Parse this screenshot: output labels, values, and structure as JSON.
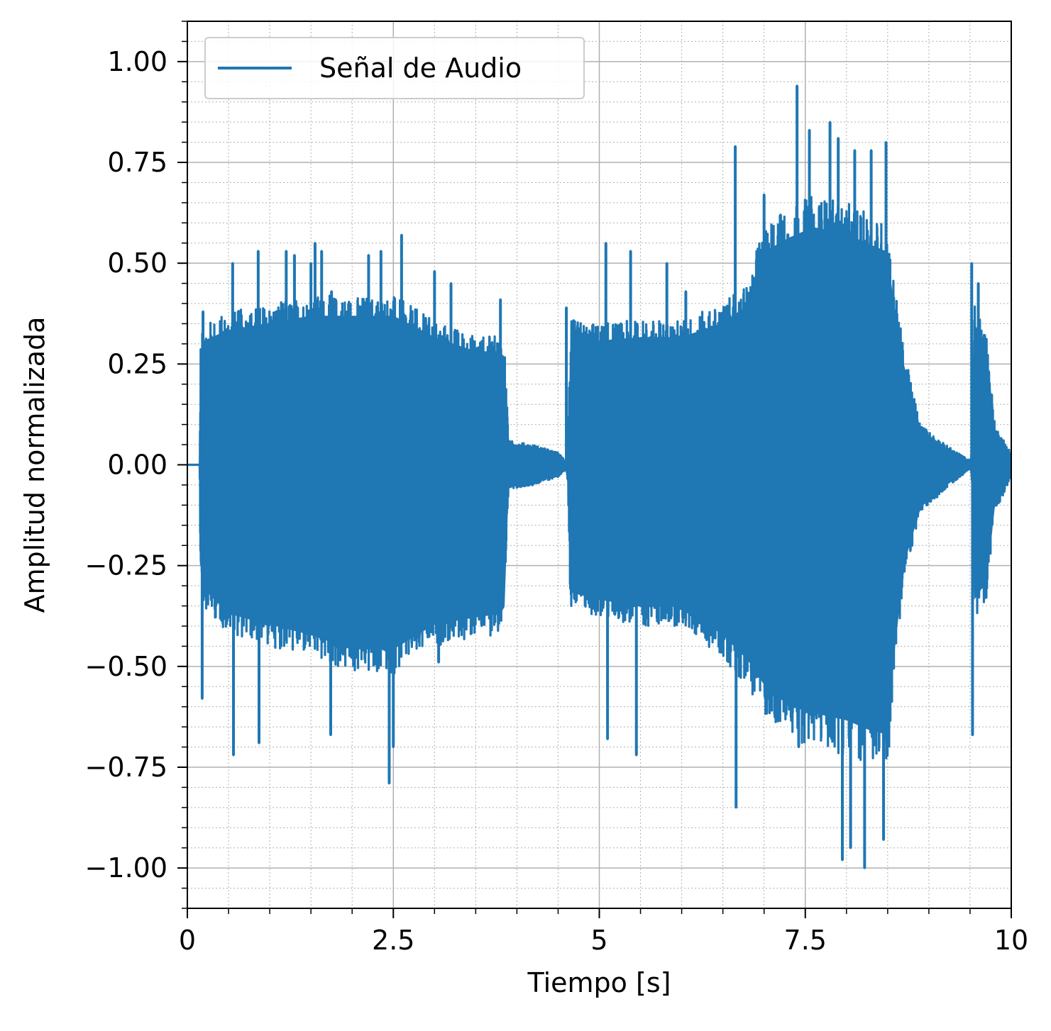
{
  "chart_data": {
    "type": "line",
    "title": "",
    "xlabel": "Tiempo [s]",
    "ylabel": "Amplitud normalizada",
    "xlim": [
      0,
      10
    ],
    "ylim": [
      -1.1,
      1.1
    ],
    "x_ticks": [
      0,
      2.5,
      5,
      7.5,
      10
    ],
    "x_tick_labels": [
      "0",
      "2.5",
      "5",
      "7.5",
      "10"
    ],
    "y_ticks": [
      1.0,
      0.75,
      0.5,
      0.25,
      0.0,
      -0.25,
      -0.5,
      -0.75,
      -1.0
    ],
    "y_tick_labels": [
      "1.00",
      "0.75",
      "0.50",
      "0.25",
      "0.00",
      "−0.25",
      "−0.50",
      "−0.75",
      "−1.00"
    ],
    "grid": {
      "major": true,
      "minor": true
    },
    "legend": {
      "position": "top-left",
      "entries": [
        "Señal de Audio"
      ]
    },
    "series": [
      {
        "name": "Señal de Audio",
        "color": "#1f77b4",
        "envelope": {
          "x": [
            0.0,
            0.15,
            0.16,
            0.2,
            0.5,
            1.0,
            1.5,
            2.0,
            2.5,
            3.0,
            3.5,
            3.8,
            3.85,
            3.9,
            4.2,
            4.5,
            4.6,
            4.62,
            4.65,
            5.0,
            5.5,
            6.0,
            6.5,
            6.8,
            7.0,
            7.3,
            7.6,
            8.0,
            8.3,
            8.5,
            8.55,
            8.7,
            8.9,
            9.2,
            9.5,
            9.52,
            9.55,
            9.7,
            9.8,
            10.0
          ],
          "upper": [
            0.0,
            0.0,
            0.3,
            0.35,
            0.38,
            0.4,
            0.42,
            0.42,
            0.42,
            0.36,
            0.32,
            0.32,
            0.3,
            0.06,
            0.05,
            0.03,
            0.01,
            0.05,
            0.36,
            0.35,
            0.36,
            0.36,
            0.4,
            0.45,
            0.6,
            0.64,
            0.67,
            0.65,
            0.62,
            0.6,
            0.5,
            0.28,
            0.1,
            0.05,
            0.01,
            0.03,
            0.4,
            0.33,
            0.1,
            0.03
          ],
          "lower": [
            0.0,
            0.0,
            -0.3,
            -0.35,
            -0.42,
            -0.45,
            -0.48,
            -0.52,
            -0.52,
            -0.45,
            -0.43,
            -0.42,
            -0.4,
            -0.06,
            -0.05,
            -0.03,
            -0.01,
            -0.05,
            -0.36,
            -0.38,
            -0.4,
            -0.4,
            -0.48,
            -0.55,
            -0.62,
            -0.68,
            -0.7,
            -0.72,
            -0.75,
            -0.76,
            -0.6,
            -0.28,
            -0.12,
            -0.06,
            -0.01,
            -0.03,
            -0.38,
            -0.33,
            -0.12,
            -0.03
          ]
        },
        "peaks": [
          [
            0.18,
            -0.58
          ],
          [
            0.19,
            0.38
          ],
          [
            0.55,
            0.5
          ],
          [
            0.56,
            -0.72
          ],
          [
            0.86,
            0.53
          ],
          [
            0.87,
            -0.69
          ],
          [
            1.2,
            0.53
          ],
          [
            1.3,
            0.52
          ],
          [
            1.5,
            0.5
          ],
          [
            1.55,
            0.55
          ],
          [
            1.63,
            0.53
          ],
          [
            1.75,
            0.43
          ],
          [
            1.74,
            -0.67
          ],
          [
            2.2,
            0.52
          ],
          [
            2.35,
            0.53
          ],
          [
            2.5,
            -0.7
          ],
          [
            2.45,
            -0.79
          ],
          [
            2.6,
            0.57
          ],
          [
            3.0,
            0.48
          ],
          [
            3.2,
            0.45
          ],
          [
            3.05,
            -0.49
          ],
          [
            3.8,
            0.41
          ],
          [
            4.6,
            0.39
          ],
          [
            5.08,
            0.55
          ],
          [
            5.1,
            -0.68
          ],
          [
            5.38,
            0.53
          ],
          [
            5.45,
            -0.72
          ],
          [
            5.82,
            0.5
          ],
          [
            6.05,
            0.43
          ],
          [
            6.65,
            0.79
          ],
          [
            6.66,
            -0.85
          ],
          [
            7.0,
            0.67
          ],
          [
            7.2,
            0.62
          ],
          [
            7.4,
            0.94
          ],
          [
            7.42,
            -0.7
          ],
          [
            7.55,
            0.83
          ],
          [
            7.8,
            0.85
          ],
          [
            7.9,
            0.81
          ],
          [
            7.95,
            -0.98
          ],
          [
            8.05,
            -0.95
          ],
          [
            8.1,
            0.78
          ],
          [
            8.22,
            -1.0
          ],
          [
            8.3,
            0.78
          ],
          [
            8.48,
            0.8
          ],
          [
            8.45,
            -0.93
          ],
          [
            9.52,
            0.5
          ],
          [
            9.53,
            -0.67
          ],
          [
            9.6,
            0.45
          ]
        ]
      }
    ]
  }
}
